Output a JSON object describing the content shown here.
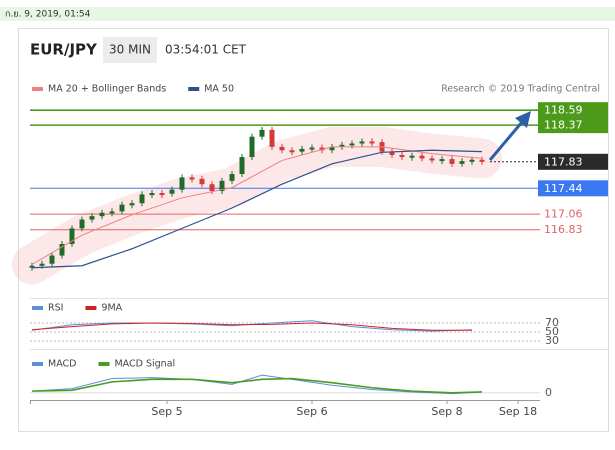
{
  "header": {
    "timestamp": "ก.ย. 9, 2019, 01:54"
  },
  "toolbar": {
    "symbol": "EUR/JPY",
    "interval": "30 MIN",
    "time": "03:54:01 CET"
  },
  "credit": "Research © 2019 Trading Central",
  "chart_data": [
    {
      "type": "candlestick",
      "xlim": [
        -0.2,
        49.8
      ],
      "xticks": [
        {
          "value": 13.5,
          "label": "Sep 5"
        },
        {
          "value": 28,
          "label": "Sep 6"
        },
        {
          "value": 41.5,
          "label": "Sep 8"
        },
        {
          "value": 48.6,
          "label": "Sep 18"
        }
      ],
      "ylim": [
        116.09,
        118.74
      ],
      "price": {
        "up_color": "#1f6b2a",
        "down_color": "#d33a3a",
        "values": [
          116.3,
          116.33,
          116.45,
          116.62,
          116.85,
          116.98,
          117.03,
          117.08,
          117.1,
          117.2,
          117.22,
          117.35,
          117.37,
          117.36,
          117.42,
          117.6,
          117.58,
          117.5,
          117.4,
          117.55,
          117.65,
          117.9,
          118.2,
          118.3,
          118.05,
          118.0,
          117.98,
          118.02,
          118.04,
          118.0,
          118.05,
          118.08,
          118.1,
          118.13,
          118.12,
          117.98,
          117.93,
          117.9,
          117.92,
          117.88,
          117.86,
          117.87,
          117.8,
          117.84,
          117.86,
          117.83
        ]
      },
      "series": [
        {
          "name": "MA 20 + Bollinger Bands",
          "color": "#f08080",
          "x": [
            0,
            5,
            10,
            15,
            20,
            25,
            30,
            35,
            40,
            45
          ],
          "values": [
            116.32,
            116.75,
            117.05,
            117.3,
            117.45,
            117.85,
            118.05,
            118.05,
            117.95,
            117.88
          ]
        },
        {
          "name": "MA 50",
          "color": "#2d5189",
          "x": [
            0,
            5,
            10,
            15,
            20,
            25,
            30,
            35,
            40,
            45
          ],
          "values": [
            116.27,
            116.3,
            116.55,
            116.85,
            117.15,
            117.5,
            117.8,
            117.97,
            118.0,
            117.98
          ]
        }
      ],
      "levels": [
        118.59,
        118.37,
        117.83,
        117.44,
        117.06,
        116.83
      ],
      "level_colors": [
        "#4c9a1a",
        "#4c9a1a",
        "#2b2b2b",
        "#3a78f2",
        "#e06464",
        "#e06464"
      ]
    },
    {
      "type": "line",
      "ylim": [
        14,
        82
      ],
      "yticks": [
        70,
        50,
        30
      ],
      "series": [
        {
          "name": "RSI",
          "color": "#5b8fd9",
          "x": [
            0,
            4,
            8,
            12,
            16,
            20,
            24,
            28,
            32,
            36,
            40,
            44
          ],
          "values": [
            54,
            66,
            70,
            70,
            68,
            64,
            70,
            75,
            62,
            55,
            52,
            55
          ]
        },
        {
          "name": "9MA",
          "color": "#d42020",
          "x": [
            0,
            4,
            8,
            12,
            16,
            20,
            24,
            28,
            32,
            36,
            40,
            44
          ],
          "values": [
            55,
            62,
            68,
            70,
            69,
            66,
            67,
            70,
            66,
            58,
            54,
            54
          ]
        }
      ]
    },
    {
      "type": "line",
      "ylim": [
        -0.05,
        0.45
      ],
      "yticks": [
        0
      ],
      "series": [
        {
          "name": "MACD",
          "color": "#5b8fd9",
          "x": [
            0,
            4,
            8,
            12,
            16,
            20,
            23,
            26,
            30,
            34,
            38,
            42,
            45
          ],
          "values": [
            0.02,
            0.05,
            0.17,
            0.18,
            0.16,
            0.1,
            0.21,
            0.16,
            0.09,
            0.04,
            0.01,
            -0.01,
            0.01
          ]
        },
        {
          "name": "MACD Signal",
          "color": "#4a9c1f",
          "x": [
            0,
            4,
            8,
            12,
            16,
            20,
            23,
            26,
            30,
            34,
            38,
            42,
            45
          ],
          "values": [
            0.02,
            0.03,
            0.13,
            0.16,
            0.16,
            0.12,
            0.16,
            0.17,
            0.12,
            0.06,
            0.02,
            0.0,
            0.01
          ]
        }
      ]
    }
  ]
}
